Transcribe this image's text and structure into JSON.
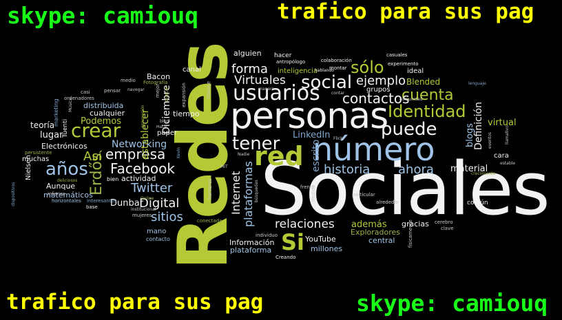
{
  "captions": {
    "top_left": "skype: camiouq",
    "top_right": "trafico para sus pag",
    "bottom_left": "trafico para sus pag",
    "bottom_right": "skype: camiouq"
  },
  "colors": {
    "background": "#000000",
    "caption_green": "#18ff18",
    "caption_yellow": "#ffff00",
    "word_green": "#b5c936",
    "word_white": "#f2f2f2",
    "word_blue": "#9fc3e6"
  },
  "words": {
    "redes": "Redes",
    "sociales": "Sociales",
    "personas": "personas",
    "numero": "número",
    "usuarios": "usuarios",
    "red": "red",
    "crear": "crear",
    "social": "social",
    "identidad": "Identidad",
    "puede": "puede",
    "tener": "tener",
    "cuenta": "cuenta",
    "contactos": "contactos",
    "forma": "forma",
    "solo": "sólo",
    "virtuales": "Virtuales",
    "ejemplo": "ejemplo",
    "facebook": "Facebook",
    "anos": "años",
    "empresa": "empresa",
    "historia": "historia",
    "ahora": "ahora",
    "internet": "Internet",
    "plataformas": "plataformas",
    "twitter": "Twitter",
    "digital": "Digital",
    "sitios": "sitios",
    "si": "Si",
    "relaciones": "relaciones",
    "erdos": "Erdős",
    "networking": "Networking",
    "linkedin": "LinkedIn",
    "escrito": "escrito",
    "definicion": "Definición",
    "blogs": "blogs",
    "virtual": "virtual",
    "material": "material",
    "establecer": "establecer",
    "diciembre": "Diciembre",
    "podemos": "Podemos",
    "distribuida": "distribuida",
    "cualquier": "cualquier",
    "tiempo": "tiempo",
    "lugar": "lugar",
    "teoria": "teoría",
    "electronicos": "Electrónicos",
    "muchas": "muchas",
    "asi": "Así",
    "bacon": "Bacon",
    "canal": "canal",
    "alguien": "alguien",
    "hacer": "hacer",
    "inteligencia": "inteligencia",
    "blended": "Blended",
    "grupos": "grupos",
    "ademas": "además",
    "gracias": "gracias",
    "informacion": "Información",
    "plataforma": "plataforma",
    "youtube": "YouTube",
    "millones": "millones",
    "exploradores": "Exploradores",
    "central": "central",
    "actividad": "actividad",
    "aunque": "Aunque",
    "nielsen": "Nielsen",
    "dunbar": "Dunbar",
    "matematicos": "matemáticos",
    "mano": "mano",
    "contacto": "contacto",
    "tuenti": "Tuenti",
    "paper": "paper",
    "cara": "cara",
    "comun": "común",
    "ideal": "ideal",
    "experimento": "experimento",
    "casuales": "casuales",
    "montar": "montar",
    "antropologo": "antropólogo",
    "colaboracion": "colaboración",
    "hablando": "hablando",
    "medio": "medio",
    "fotografia": "Fotografía",
    "conoce": "conoce",
    "pensar": "pensar",
    "casi": "casi",
    "ordenadores": "ordenadores",
    "marketing": "marketing",
    "mejor": "mejor",
    "buscar": "buscar",
    "expansion": "expansión",
    "persistente": "persistente",
    "interesantes": "interesantes",
    "horizontales": "horizontales",
    "inferior": "inferior",
    "dispositivos": "dispositivos",
    "deliciosos": "deliciosos",
    "base": "base",
    "mujeres": "mujeres",
    "institucional": "institucional",
    "hombres": "hombres",
    "conectada": "conectada",
    "creando": "Creando",
    "individuo": "individuo",
    "busquedas": "búsquedas",
    "frente": "frente",
    "mundo": "mundo",
    "particular": "particular",
    "alrededor": "alrededor",
    "fisicamente": "físicamente",
    "cerebro": "cerebro",
    "clave": "clave",
    "crecimiento": "crecimiento",
    "estable": "estable",
    "eventos": "eventos",
    "llamativo": "llamativo",
    "lenguaje": "lenguaje",
    "comunidad": "comunidad",
    "flickr": "Flickr",
    "contar": "contar",
    "manera": "manera",
    "nadie": "Nadie",
    "mit": "MIT",
    "online": "Online",
    "hace": "Hace",
    "blog": "blog",
    "generacion": "generación",
    "kevin": "Kevin",
    "musica": "Música",
    "navegar": "navegar",
    "bien": "bien"
  }
}
